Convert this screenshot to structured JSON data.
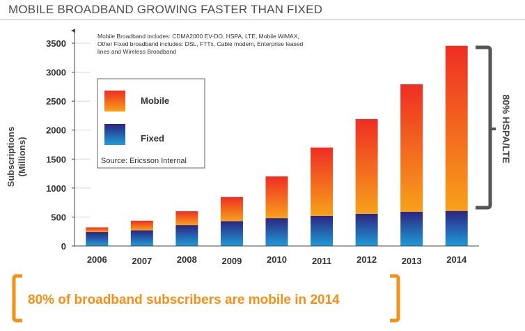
{
  "page": {
    "title": "MOBILE BROADBAND GROWING FASTER THAN FIXED",
    "callout": "80% of broadband subscribers are mobile in 2014"
  },
  "chart_data": {
    "type": "bar",
    "stacked": true,
    "title": "",
    "xlabel": "",
    "ylabel": "Subscriptions (Millions)",
    "ylim": [
      0,
      3500
    ],
    "yticks": [
      0,
      500,
      1000,
      1500,
      2000,
      2500,
      3000,
      3500
    ],
    "categories": [
      "2006",
      "2007",
      "2008",
      "2009",
      "2010",
      "2011",
      "2012",
      "2013",
      "2014"
    ],
    "series": [
      {
        "name": "Fixed",
        "values": [
          240,
          270,
          360,
          430,
          480,
          520,
          555,
          590,
          605
        ],
        "color_top": "#2c2580",
        "color_bottom": "#1f9bd7"
      },
      {
        "name": "Mobile",
        "values": [
          80,
          165,
          240,
          415,
          720,
          1180,
          1635,
          2200,
          2850
        ],
        "color_top": "#ee2e24",
        "color_bottom": "#f7a11a"
      }
    ],
    "legend": {
      "position": "top-left",
      "items": [
        "Mobile",
        "Fixed"
      ],
      "source": "Source: Ericsson Internal"
    },
    "notes": [
      "Mobile Broadband includes:  CDMA2000 EV-DO, HSPA, LTE, Mobile WiMAX,",
      "Other Fixed broadband includes: DSL, FTTx, Cable modem, Enterprise leased",
      "lines and Wireless Broadband"
    ],
    "bracket_label": "80% HSPA/LTE",
    "grid": true
  },
  "colors": {
    "accent": "#f39019",
    "axis": "#444444",
    "grid": "#d8d8d8",
    "bracket": "#555555"
  }
}
